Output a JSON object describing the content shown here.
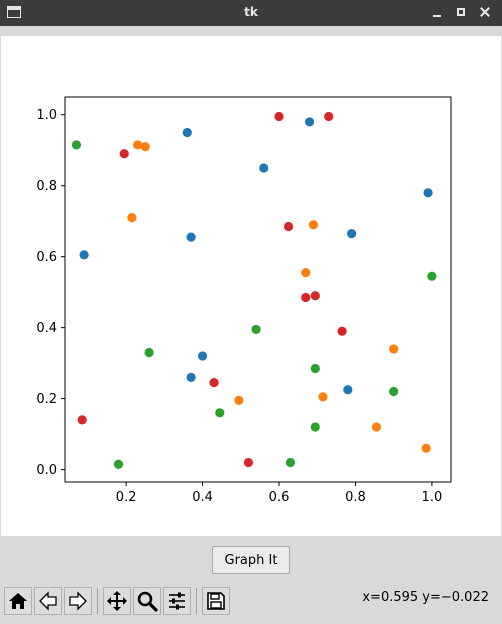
{
  "window": {
    "title": "tk"
  },
  "button": {
    "graph_label": "Graph It"
  },
  "toolbar": {
    "items": [
      {
        "name": "home-icon"
      },
      {
        "name": "back-icon"
      },
      {
        "name": "forward-icon"
      },
      {
        "name": "pan-icon"
      },
      {
        "name": "zoom-icon"
      },
      {
        "name": "configure-subplots-icon"
      },
      {
        "name": "save-icon"
      }
    ],
    "coordinates": "x=0.595 y=−0.022"
  },
  "colors": {
    "blue": "#1f77b4",
    "orange": "#ff7f0e",
    "green": "#2ca02c",
    "red": "#d62728"
  },
  "chart_data": {
    "type": "scatter",
    "xlim": [
      0.04,
      1.05
    ],
    "ylim": [
      -0.035,
      1.05
    ],
    "xticks": [
      0.2,
      0.4,
      0.6,
      0.8,
      1.0
    ],
    "xtick_labels": [
      "0.2",
      "0.4",
      "0.6",
      "0.8",
      "1.0"
    ],
    "yticks": [
      0.0,
      0.2,
      0.4,
      0.6,
      0.8,
      1.0
    ],
    "ytick_labels": [
      "0.0",
      "0.2",
      "0.4",
      "0.6",
      "0.8",
      "1.0"
    ],
    "grid": false,
    "series": [
      {
        "color": "#1f77b4",
        "points": [
          [
            0.36,
            0.95
          ],
          [
            0.68,
            0.98
          ],
          [
            0.56,
            0.85
          ],
          [
            0.99,
            0.78
          ],
          [
            0.37,
            0.655
          ],
          [
            0.79,
            0.665
          ],
          [
            0.09,
            0.605
          ],
          [
            0.4,
            0.32
          ],
          [
            0.37,
            0.26
          ],
          [
            0.78,
            0.225
          ]
        ]
      },
      {
        "color": "#ff7f0e",
        "points": [
          [
            0.23,
            0.915
          ],
          [
            0.25,
            0.91
          ],
          [
            0.215,
            0.71
          ],
          [
            0.69,
            0.69
          ],
          [
            0.67,
            0.555
          ],
          [
            0.9,
            0.34
          ],
          [
            0.715,
            0.205
          ],
          [
            0.495,
            0.195
          ],
          [
            0.855,
            0.12
          ],
          [
            0.985,
            0.06
          ]
        ]
      },
      {
        "color": "#2ca02c",
        "points": [
          [
            0.07,
            0.915
          ],
          [
            1.0,
            0.545
          ],
          [
            0.54,
            0.395
          ],
          [
            0.26,
            0.33
          ],
          [
            0.695,
            0.285
          ],
          [
            0.9,
            0.22
          ],
          [
            0.445,
            0.16
          ],
          [
            0.695,
            0.12
          ],
          [
            0.18,
            0.015
          ],
          [
            0.63,
            0.02
          ]
        ]
      },
      {
        "color": "#d62728",
        "points": [
          [
            0.6,
            0.995
          ],
          [
            0.73,
            0.995
          ],
          [
            0.195,
            0.89
          ],
          [
            0.625,
            0.685
          ],
          [
            0.67,
            0.485
          ],
          [
            0.695,
            0.49
          ],
          [
            0.765,
            0.39
          ],
          [
            0.43,
            0.245
          ],
          [
            0.085,
            0.14
          ],
          [
            0.52,
            0.02
          ]
        ]
      }
    ]
  }
}
